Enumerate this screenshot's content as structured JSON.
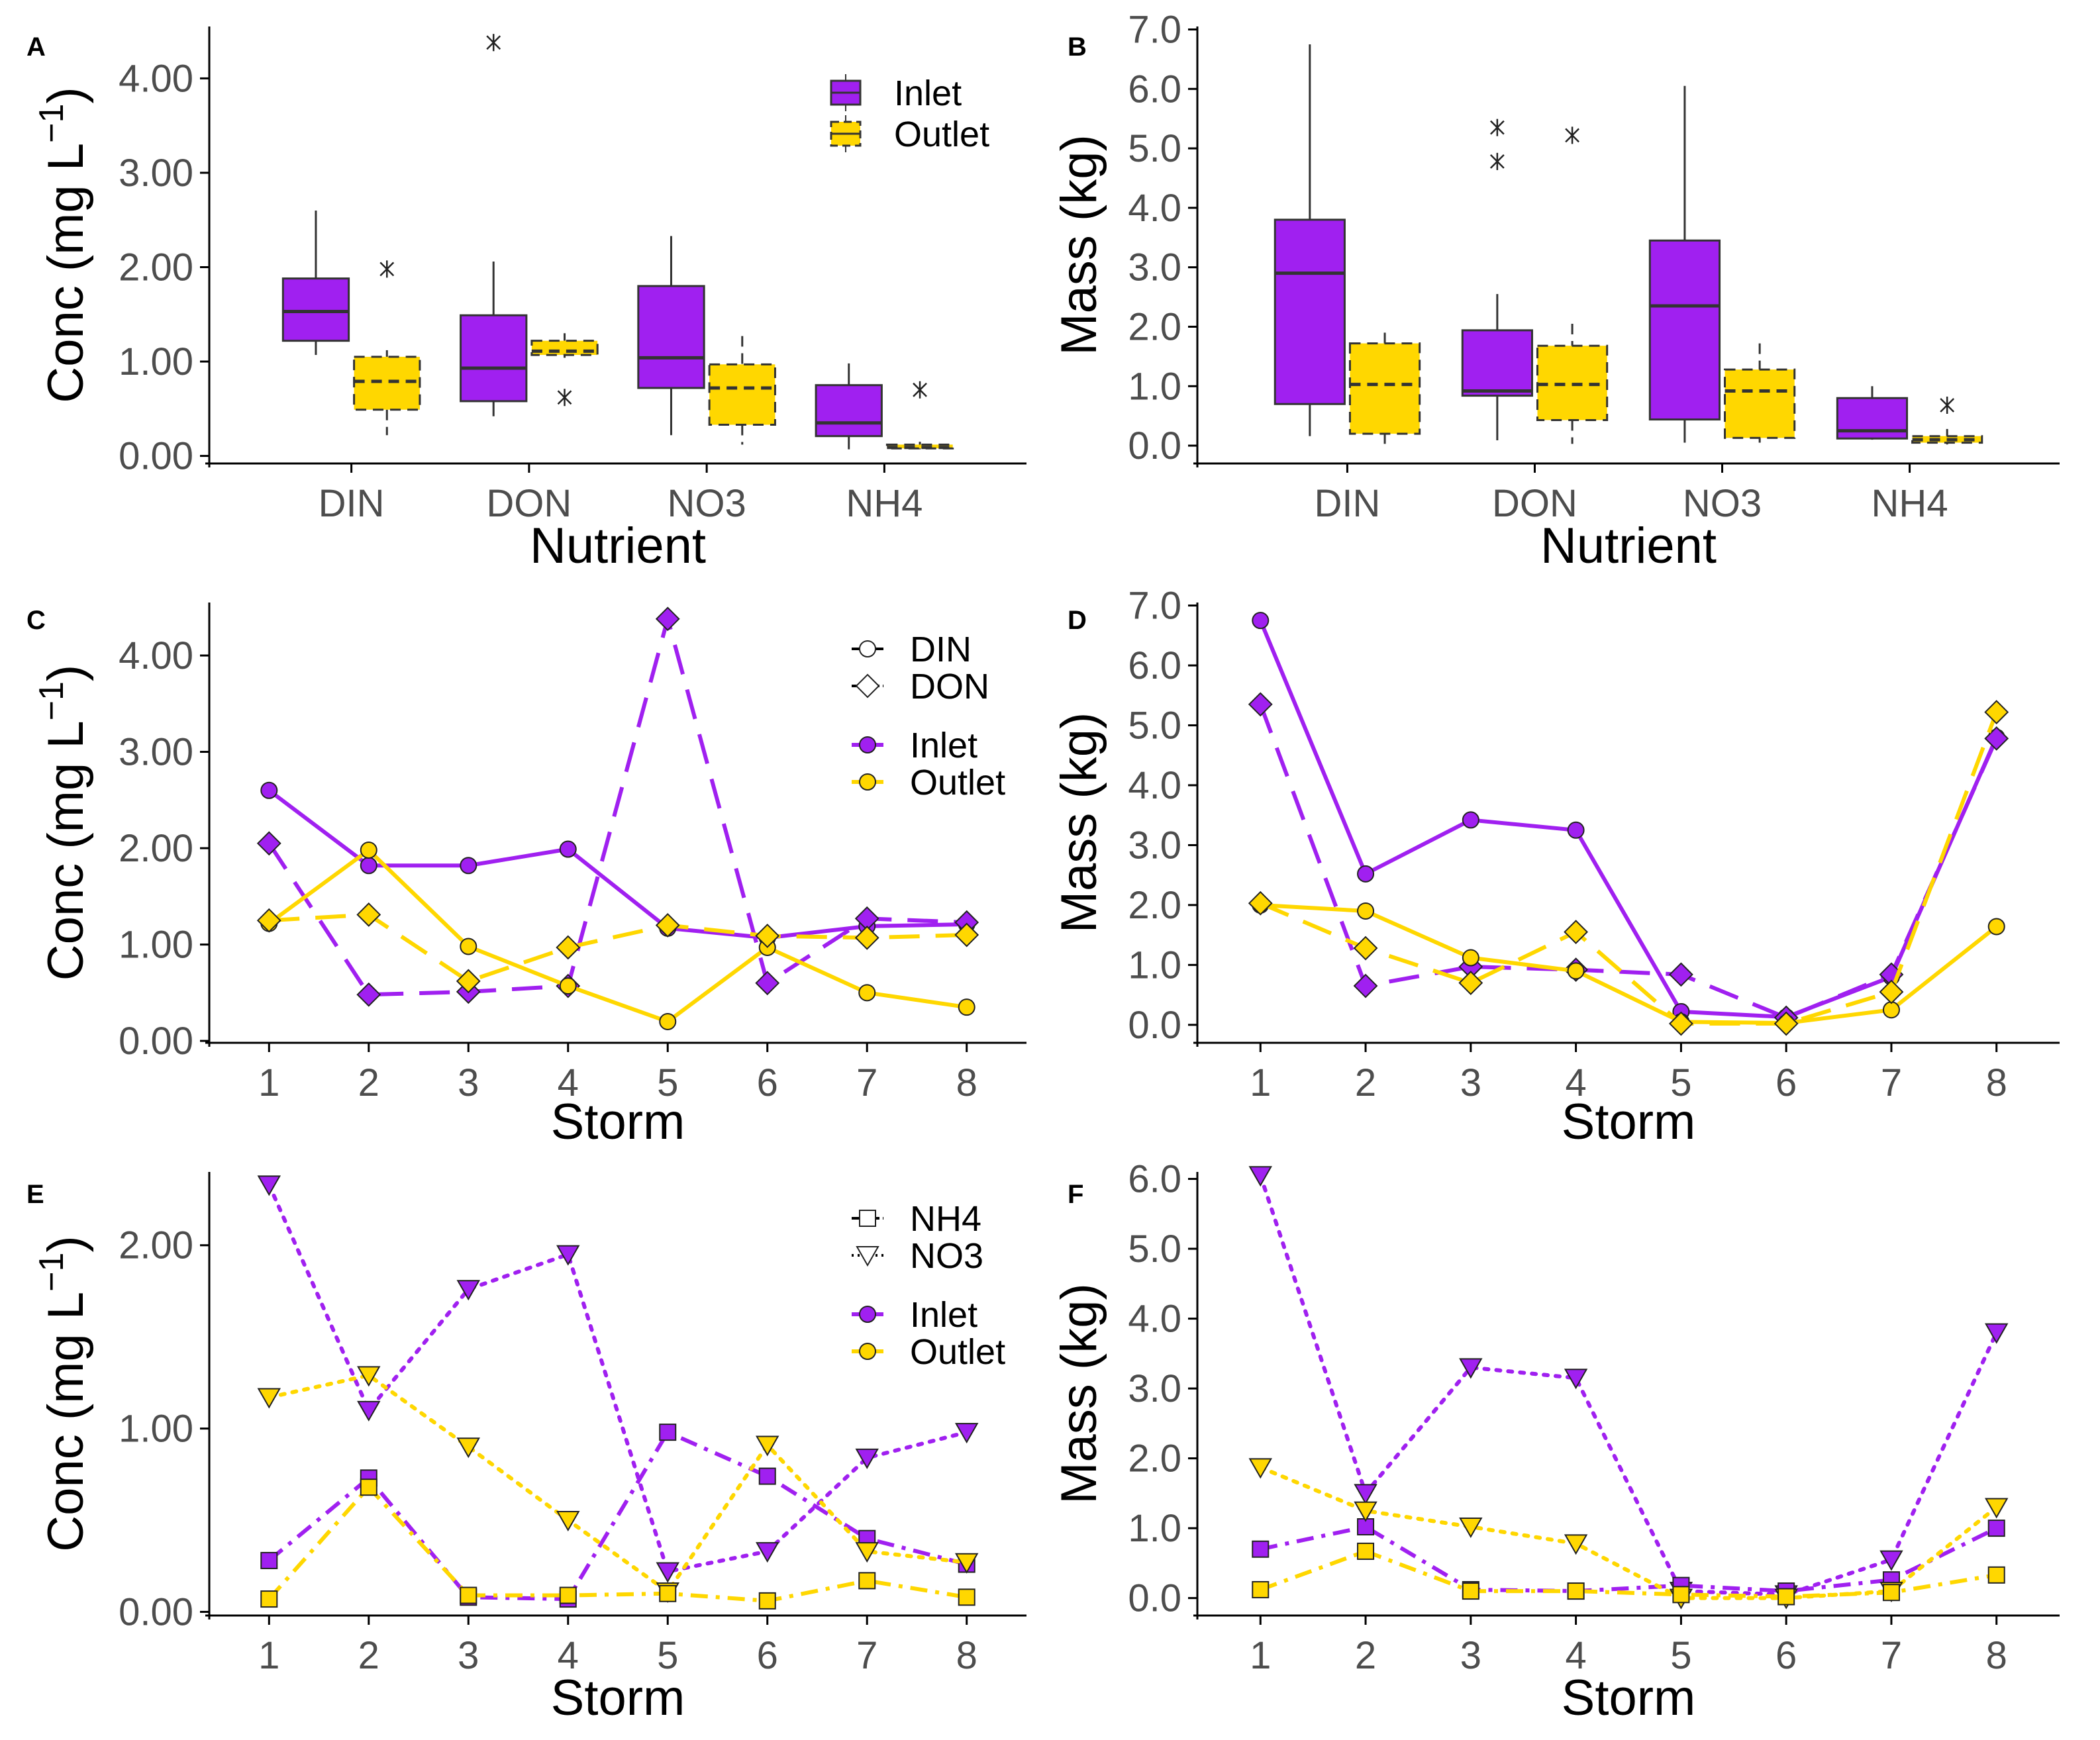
{
  "colors": {
    "inlet": "#A020F0",
    "outlet": "#FFD700",
    "outline": "#333333",
    "axis": "#000000"
  },
  "chart_data": [
    {
      "panel": "A",
      "type": "box",
      "xlabel": "Nutrient",
      "ylabel": "Conc (mg L",
      "ylabel_sup": "−1",
      "ylabel_close": ")",
      "categories": [
        "DIN",
        "DON",
        "NO3",
        "NH4"
      ],
      "yticks": [
        "0.00",
        "1.00",
        "2.00",
        "3.00",
        "4.00"
      ],
      "ylim": [
        -0.08,
        4.55
      ],
      "legend": {
        "position": "top-right",
        "entries": [
          "Inlet",
          "Outlet"
        ]
      },
      "series": [
        {
          "name": "Inlet",
          "boxes": [
            {
              "min": 1.07,
              "q1": 1.22,
              "median": 1.53,
              "q3": 1.88,
              "max": 2.6,
              "outliers": []
            },
            {
              "min": 0.42,
              "q1": 0.58,
              "median": 0.93,
              "q3": 1.49,
              "max": 2.06,
              "outliers": [
                4.38
              ]
            },
            {
              "min": 0.22,
              "q1": 0.72,
              "median": 1.04,
              "q3": 1.8,
              "max": 2.33,
              "outliers": []
            },
            {
              "min": 0.07,
              "q1": 0.21,
              "median": 0.35,
              "q3": 0.75,
              "max": 0.98,
              "outliers": []
            }
          ]
        },
        {
          "name": "Outlet",
          "boxes": [
            {
              "min": 0.22,
              "q1": 0.49,
              "median": 0.79,
              "q3": 1.05,
              "max": 1.12,
              "outliers": [
                1.98
              ]
            },
            {
              "min": 1.04,
              "q1": 1.07,
              "median": 1.11,
              "q3": 1.22,
              "max": 1.3,
              "outliers": [
                0.62
              ]
            },
            {
              "min": 0.12,
              "q1": 0.33,
              "median": 0.72,
              "q3": 0.97,
              "max": 1.27,
              "outliers": []
            },
            {
              "min": 0.07,
              "q1": 0.08,
              "median": 0.09,
              "q3": 0.12,
              "max": 0.15,
              "outliers": [
                0.7
              ]
            }
          ]
        }
      ]
    },
    {
      "panel": "B",
      "type": "box",
      "xlabel": "Nutrient",
      "ylabel": "Mass (kg)",
      "categories": [
        "DIN",
        "DON",
        "NO3",
        "NH4"
      ],
      "yticks": [
        "0.0",
        "1.0",
        "2.0",
        "3.0",
        "4.0",
        "5.0",
        "6.0",
        "7.0"
      ],
      "ylim": [
        -0.3,
        7.05
      ],
      "series": [
        {
          "name": "Inlet",
          "boxes": [
            {
              "min": 0.16,
              "q1": 0.7,
              "median": 2.9,
              "q3": 3.8,
              "max": 6.75,
              "outliers": []
            },
            {
              "min": 0.09,
              "q1": 0.84,
              "median": 0.92,
              "q3": 1.94,
              "max": 2.55,
              "outliers": [
                5.35,
                4.78
              ]
            },
            {
              "min": 0.05,
              "q1": 0.44,
              "median": 2.35,
              "q3": 3.45,
              "max": 6.05,
              "outliers": []
            },
            {
              "min": 0.1,
              "q1": 0.12,
              "median": 0.25,
              "q3": 0.8,
              "max": 1.0,
              "outliers": []
            }
          ]
        },
        {
          "name": "Outlet",
          "boxes": [
            {
              "min": 0.03,
              "q1": 0.2,
              "median": 1.03,
              "q3": 1.72,
              "max": 1.9,
              "outliers": []
            },
            {
              "min": 0.03,
              "q1": 0.43,
              "median": 1.03,
              "q3": 1.68,
              "max": 2.05,
              "outliers": [
                5.22
              ]
            },
            {
              "min": 0.05,
              "q1": 0.13,
              "median": 0.92,
              "q3": 1.28,
              "max": 1.72,
              "outliers": []
            },
            {
              "min": 0.02,
              "q1": 0.05,
              "median": 0.1,
              "q3": 0.16,
              "max": 0.28,
              "outliers": [
                0.68
              ]
            }
          ]
        }
      ]
    },
    {
      "panel": "C",
      "type": "line",
      "xlabel": "Storm",
      "ylabel": "Conc (mg L",
      "ylabel_sup": "−1",
      "ylabel_close": ")",
      "x": [
        1,
        2,
        3,
        4,
        5,
        6,
        7,
        8
      ],
      "yticks": [
        "0.00",
        "1.00",
        "2.00",
        "3.00",
        "4.00"
      ],
      "ylim": [
        -0.02,
        4.55
      ],
      "legend": {
        "position": "top-right",
        "shapes": [
          "DIN",
          "DON"
        ],
        "sites": [
          "Inlet",
          "Outlet"
        ]
      },
      "series": [
        {
          "name": "DIN Inlet",
          "site": "Inlet",
          "nutrient": "DIN",
          "values": [
            2.6,
            1.82,
            1.82,
            1.99,
            1.17,
            1.07,
            1.19,
            1.21
          ]
        },
        {
          "name": "DON Inlet",
          "site": "Inlet",
          "nutrient": "DON",
          "values": [
            2.05,
            0.48,
            0.51,
            0.57,
            4.38,
            0.6,
            1.27,
            1.23
          ]
        },
        {
          "name": "DIN Outlet",
          "site": "Outlet",
          "nutrient": "DIN",
          "values": [
            1.22,
            1.98,
            0.98,
            0.57,
            0.2,
            0.97,
            0.5,
            0.35
          ]
        },
        {
          "name": "DON Outlet",
          "site": "Outlet",
          "nutrient": "DON",
          "values": [
            1.25,
            1.31,
            0.62,
            0.97,
            1.2,
            1.09,
            1.07,
            1.1
          ]
        }
      ]
    },
    {
      "panel": "D",
      "type": "line",
      "xlabel": "Storm",
      "ylabel": "Mass (kg)",
      "x": [
        1,
        2,
        3,
        4,
        5,
        6,
        7,
        8
      ],
      "yticks": [
        "0.0",
        "1.0",
        "2.0",
        "3.0",
        "4.0",
        "5.0",
        "6.0",
        "7.0"
      ],
      "ylim": [
        -0.3,
        7.05
      ],
      "series": [
        {
          "name": "DIN Inlet",
          "site": "Inlet",
          "nutrient": "DIN",
          "values": [
            6.75,
            2.52,
            3.42,
            3.25,
            0.22,
            0.13,
            0.8,
            4.8
          ]
        },
        {
          "name": "DON Inlet",
          "site": "Inlet",
          "nutrient": "DON",
          "values": [
            5.35,
            0.65,
            0.97,
            0.92,
            0.84,
            0.12,
            0.84,
            4.78
          ]
        },
        {
          "name": "DIN Outlet",
          "site": "Outlet",
          "nutrient": "DIN",
          "values": [
            2.0,
            1.9,
            1.12,
            0.9,
            0.05,
            0.03,
            0.25,
            1.64
          ]
        },
        {
          "name": "DON Outlet",
          "site": "Outlet",
          "nutrient": "DON",
          "values": [
            2.03,
            1.28,
            0.7,
            1.55,
            0.02,
            0.02,
            0.55,
            5.22
          ]
        }
      ]
    },
    {
      "panel": "E",
      "type": "line",
      "xlabel": "Storm",
      "ylabel": "Conc (mg L",
      "ylabel_sup": "−1",
      "ylabel_close": ")",
      "x": [
        1,
        2,
        3,
        4,
        5,
        6,
        7,
        8
      ],
      "yticks": [
        "0.00",
        "1.00",
        "2.00"
      ],
      "ylim": [
        -0.02,
        2.4
      ],
      "legend": {
        "position": "top-right",
        "shapes": [
          "NH4",
          "NO3"
        ],
        "sites": [
          "Inlet",
          "Outlet"
        ]
      },
      "series": [
        {
          "name": "NO3 Inlet",
          "site": "Inlet",
          "nutrient": "NO3",
          "values": [
            2.33,
            1.1,
            1.76,
            1.95,
            0.22,
            0.33,
            0.84,
            0.98
          ]
        },
        {
          "name": "NH4 Inlet",
          "site": "Inlet",
          "nutrient": "NH4",
          "values": [
            0.28,
            0.73,
            0.08,
            0.07,
            0.98,
            0.74,
            0.4,
            0.26
          ]
        },
        {
          "name": "NO3 Outlet",
          "site": "Outlet",
          "nutrient": "NO3",
          "values": [
            1.17,
            1.29,
            0.9,
            0.5,
            0.11,
            0.91,
            0.33,
            0.27
          ]
        },
        {
          "name": "NH4 Outlet",
          "site": "Outlet",
          "nutrient": "NH4",
          "values": [
            0.07,
            0.68,
            0.09,
            0.09,
            0.1,
            0.06,
            0.17,
            0.08
          ]
        }
      ]
    },
    {
      "panel": "F",
      "type": "line",
      "xlabel": "Storm",
      "ylabel": "Mass (kg)",
      "x": [
        1,
        2,
        3,
        4,
        5,
        6,
        7,
        8
      ],
      "yticks": [
        "0.0",
        "1.0",
        "2.0",
        "3.0",
        "4.0",
        "5.0",
        "6.0"
      ],
      "ylim": [
        -0.25,
        6.1
      ],
      "series": [
        {
          "name": "NO3 Inlet",
          "site": "Inlet",
          "nutrient": "NO3",
          "values": [
            6.05,
            1.5,
            3.3,
            3.15,
            0.1,
            0.05,
            0.55,
            3.8
          ]
        },
        {
          "name": "NH4 Inlet",
          "site": "Inlet",
          "nutrient": "NH4",
          "values": [
            0.7,
            1.02,
            0.12,
            0.1,
            0.18,
            0.1,
            0.26,
            1.0
          ]
        },
        {
          "name": "NO3 Outlet",
          "site": "Outlet",
          "nutrient": "NO3",
          "values": [
            1.87,
            1.25,
            1.02,
            0.78,
            0.0,
            0.0,
            0.1,
            1.3
          ]
        },
        {
          "name": "NH4 Outlet",
          "site": "Outlet",
          "nutrient": "NH4",
          "values": [
            0.12,
            0.67,
            0.1,
            0.1,
            0.05,
            0.02,
            0.08,
            0.33
          ]
        }
      ]
    }
  ]
}
